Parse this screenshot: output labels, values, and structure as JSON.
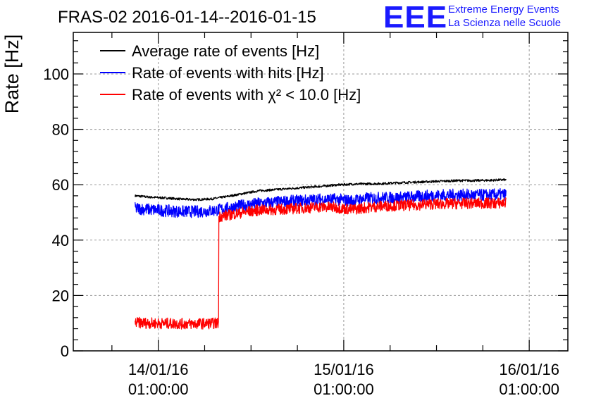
{
  "chart_data": {
    "type": "line",
    "title": "FRAS-02 2016-01-14--2016-01-15",
    "ylabel": "Rate [Hz]",
    "xlabel": "",
    "ylim": [
      0,
      115
    ],
    "yticks": [
      0,
      20,
      40,
      60,
      80,
      100
    ],
    "ytick_labels": [
      "0",
      "20",
      "40",
      "60",
      "80",
      "100"
    ],
    "x_domain_hours": [
      -5.5,
      26.5
    ],
    "xticks": [
      {
        "hour": 0,
        "date": "14/01/16",
        "time": "01:00:00"
      },
      {
        "hour": 12,
        "date": "15/01/16",
        "time": "01:00:00"
      },
      {
        "hour": 24,
        "date": "16/01/16",
        "time": "01:00:00"
      }
    ],
    "x_unit_note": "hours after 14/01/16 01:00:00",
    "grid": true,
    "legend_position": "top-left",
    "series": [
      {
        "name": "Average rate of events [Hz]",
        "color": "#000000",
        "noise": 0.4,
        "x": [
          -1.5,
          -0.5,
          0.5,
          1.5,
          2.5,
          3.5,
          4.5,
          5.5,
          6.5,
          7.5,
          8.5,
          9.5,
          10.5,
          11.5,
          12.5,
          13.5,
          14.5,
          15.5,
          16.5,
          17.5,
          18.5,
          19.5,
          20.5,
          21.5,
          22.5
        ],
        "y": [
          56,
          55.5,
          55.2,
          54.8,
          54.6,
          54.9,
          55.8,
          56.8,
          57.8,
          58.2,
          58.6,
          59,
          59.4,
          59.9,
          60.2,
          60.3,
          60.4,
          60.7,
          60.9,
          61.1,
          61.3,
          61.5,
          61.5,
          61.6,
          61.8
        ]
      },
      {
        "name": "Rate of events with hits [Hz]",
        "color": "#0000ff",
        "noise": 2.2,
        "x": [
          -1.5,
          -0.5,
          0.5,
          1.5,
          2.5,
          3.5,
          4.5,
          5.5,
          6.5,
          7.5,
          8.5,
          9.5,
          10.5,
          11.5,
          12.5,
          13.5,
          14.5,
          15.5,
          16.5,
          17.5,
          18.5,
          19.5,
          20.5,
          21.5,
          22.5
        ],
        "y": [
          51.5,
          51,
          50.6,
          50.3,
          50.3,
          50.6,
          51.5,
          52.5,
          53.2,
          53.6,
          54,
          54.3,
          54.7,
          54.7,
          54.2,
          55,
          55.3,
          55.3,
          55.6,
          56,
          56.2,
          56.3,
          56.2,
          56.3,
          56.5
        ]
      },
      {
        "name": "Rate of events with χ² < 10.0 [Hz]",
        "color": "#ff0000",
        "noise": 2.0,
        "x": [
          -1.5,
          -0.5,
          0.5,
          1.5,
          2.5,
          3.9,
          3.91,
          4.5,
          5.5,
          6.5,
          7.5,
          8.5,
          9.5,
          10.5,
          11.5,
          12.5,
          13.5,
          14.5,
          15.5,
          16.5,
          17.5,
          18.5,
          19.5,
          20.5,
          21.5,
          22.5
        ],
        "y": [
          10.2,
          10,
          9.9,
          9.8,
          9.8,
          10,
          48.5,
          49,
          50,
          50.8,
          51,
          51.3,
          51.6,
          52,
          51.8,
          51,
          51.8,
          52.3,
          52.5,
          52.6,
          53,
          53.1,
          53.2,
          53.3,
          53.3,
          53.4
        ]
      }
    ]
  },
  "logo": {
    "text": "EEE",
    "line1": "Extreme Energy Events",
    "line2": "La Scienza nelle Scuole",
    "color": "#1a1aff"
  },
  "colors": {
    "grid": "#9a9a9a",
    "axis": "#000000"
  }
}
